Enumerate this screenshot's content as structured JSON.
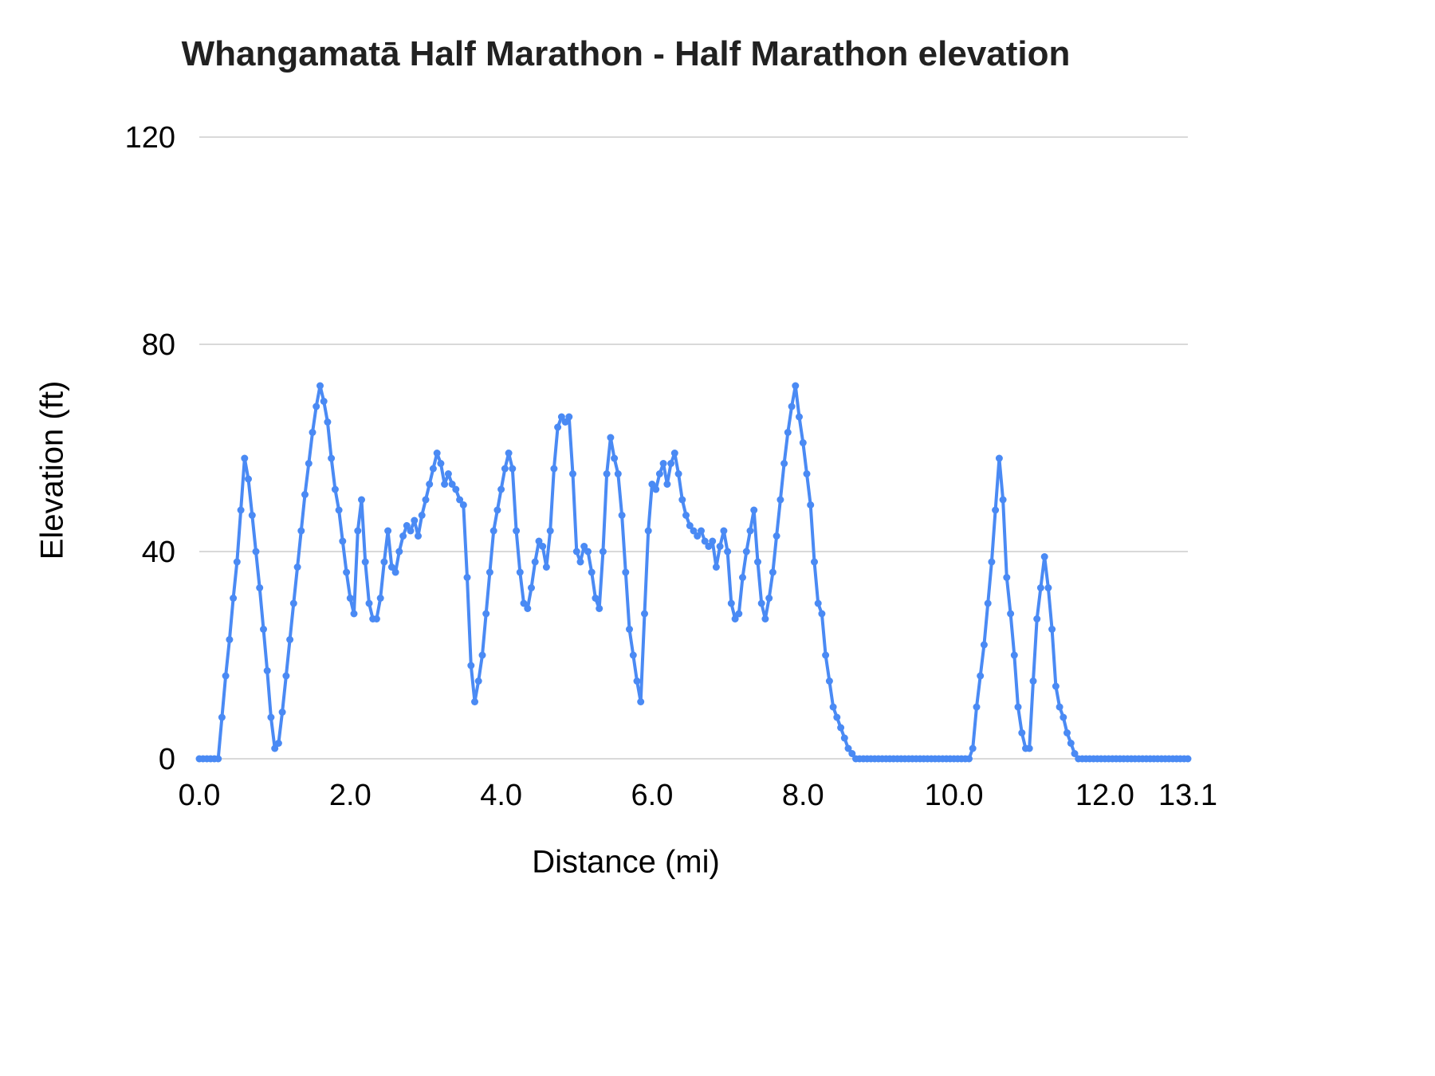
{
  "page": {
    "background_color": "#ffffff"
  },
  "chart_data": {
    "type": "line",
    "title": "Whangamatā Half Marathon - Half Marathon elevation",
    "xlabel": "Distance (mi)",
    "ylabel": "Elevation (ft)",
    "series_name": "Half Marathon elevation",
    "series_color": "#4a8af4",
    "grid_color": "#d9d9d9",
    "title_color": "#212121",
    "tick_color": "#000000",
    "show_markers": true,
    "grid": "horizontal-only",
    "legend_position": "none",
    "x_start": 0,
    "x_step": 0.05,
    "x_max": 13.1,
    "xlim": [
      0,
      13.1
    ],
    "ylim": [
      0,
      120
    ],
    "x_tick_values": [
      0,
      2,
      4,
      6,
      8,
      10,
      12,
      13.1
    ],
    "x_tick_labels": [
      "0.0",
      "2.0",
      "4.0",
      "6.0",
      "8.0",
      "10.0",
      "12.0",
      "13.1"
    ],
    "y_tick_values": [
      0,
      40,
      80,
      120
    ],
    "y_tick_labels": [
      "0",
      "40",
      "80",
      "120"
    ],
    "elevations": [
      0,
      0,
      0,
      0,
      0,
      0,
      8,
      16,
      23,
      31,
      38,
      48,
      58,
      54,
      47,
      40,
      33,
      25,
      17,
      8,
      2,
      3,
      9,
      16,
      23,
      30,
      37,
      44,
      51,
      57,
      63,
      68,
      72,
      69,
      65,
      58,
      52,
      48,
      42,
      36,
      31,
      28,
      44,
      50,
      38,
      30,
      27,
      27,
      31,
      38,
      44,
      37,
      36,
      40,
      43,
      45,
      44,
      46,
      43,
      47,
      50,
      53,
      56,
      59,
      57,
      53,
      55,
      53,
      52,
      50,
      49,
      35,
      18,
      11,
      15,
      20,
      28,
      36,
      44,
      48,
      52,
      56,
      59,
      56,
      44,
      36,
      30,
      29,
      33,
      38,
      42,
      41,
      37,
      44,
      56,
      64,
      66,
      65,
      66,
      55,
      40,
      38,
      41,
      40,
      36,
      31,
      29,
      40,
      55,
      62,
      58,
      55,
      47,
      36,
      25,
      20,
      15,
      11,
      28,
      44,
      53,
      52,
      55,
      57,
      53,
      57,
      59,
      55,
      50,
      47,
      45,
      44,
      43,
      44,
      42,
      41,
      42,
      37,
      41,
      44,
      40,
      30,
      27,
      28,
      35,
      40,
      44,
      48,
      38,
      30,
      27,
      31,
      36,
      43,
      50,
      57,
      63,
      68,
      72,
      66,
      61,
      55,
      49,
      38,
      30,
      28,
      20,
      15,
      10,
      8,
      6,
      4,
      2,
      1,
      0,
      0,
      0,
      0,
      0,
      0,
      0,
      0,
      0,
      0,
      0,
      0,
      0,
      0,
      0,
      0,
      0,
      0,
      0,
      0,
      0,
      0,
      0,
      0,
      0,
      0,
      0,
      0,
      0,
      0,
      0,
      2,
      10,
      16,
      22,
      30,
      38,
      48,
      58,
      50,
      35,
      28,
      20,
      10,
      5,
      2,
      2,
      15,
      27,
      33,
      39,
      33,
      25,
      14,
      10,
      8,
      5,
      3,
      1,
      0,
      0,
      0,
      0,
      0,
      0,
      0,
      0,
      0,
      0,
      0,
      0,
      0,
      0,
      0,
      0,
      0,
      0,
      0,
      0,
      0,
      0,
      0,
      0,
      0,
      0,
      0,
      0,
      0,
      0
    ]
  }
}
